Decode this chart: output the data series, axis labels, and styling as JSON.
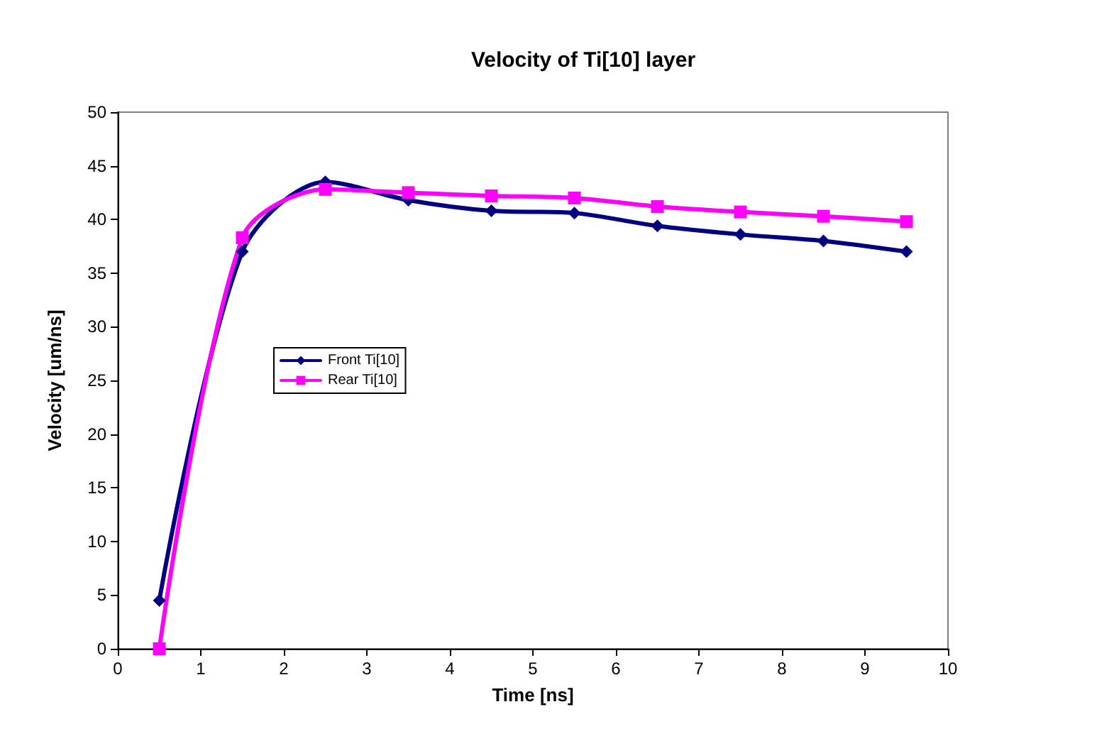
{
  "chart_data": {
    "type": "line",
    "title": "Velocity of Ti[10] layer",
    "xlabel": "Time [ns]",
    "ylabel": "Velocity [um/ns]",
    "xlim": [
      0,
      10
    ],
    "xticks": [
      0,
      1,
      2,
      3,
      4,
      5,
      6,
      7,
      8,
      9,
      10
    ],
    "ylim": [
      0,
      50
    ],
    "yticks": [
      0,
      5,
      10,
      15,
      20,
      25,
      30,
      35,
      40,
      45,
      50
    ],
    "x": [
      0.5,
      1.5,
      2.5,
      3.5,
      4.5,
      5.5,
      6.5,
      7.5,
      8.5,
      9.5
    ],
    "series": [
      {
        "name": "Front Ti[10]",
        "color": "#000080",
        "marker": "diamond",
        "values": [
          4.5,
          37,
          43.5,
          41.8,
          40.8,
          40.6,
          39.4,
          38.6,
          38,
          37
        ]
      },
      {
        "name": "Rear Ti[10]",
        "color": "#ff00ff",
        "marker": "square",
        "values": [
          0,
          38.3,
          42.8,
          42.5,
          42.2,
          42,
          41.2,
          40.7,
          40.3,
          39.8
        ]
      }
    ],
    "grid": false,
    "legend": "left",
    "line_style": "solid"
  }
}
